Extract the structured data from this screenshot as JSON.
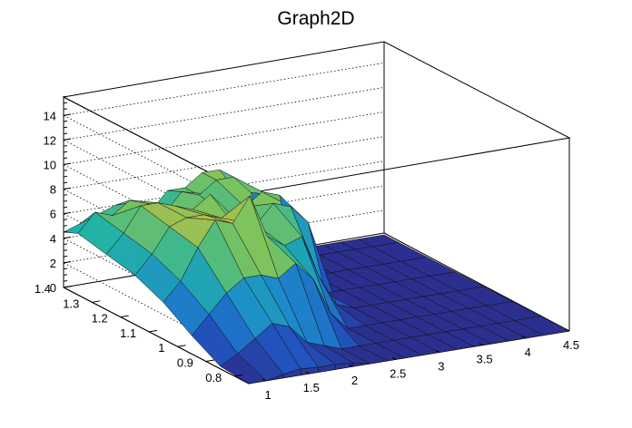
{
  "chart_data": {
    "type": "surface",
    "title": "Graph2D",
    "xlabel": "",
    "ylabel": "",
    "zlabel": "",
    "xlim": [
      0.8,
      4.5
    ],
    "ylim": [
      0.75,
      1.4
    ],
    "zlim": [
      0,
      15.5
    ],
    "x_ticks": [
      "1",
      "1.5",
      "2",
      "2.5",
      "3",
      "3.5",
      "4",
      "4.5"
    ],
    "x_tick_values": [
      1,
      1.5,
      2,
      2.5,
      3,
      3.5,
      4,
      4.5
    ],
    "y_ticks": [
      "0.8",
      "0.9",
      "1",
      "1.1",
      "1.2",
      "1.3",
      "1.4"
    ],
    "y_tick_values": [
      0.8,
      0.9,
      1.0,
      1.1,
      1.2,
      1.3,
      1.4
    ],
    "z_ticks": [
      "0",
      "2",
      "4",
      "6",
      "8",
      "10",
      "12",
      "14"
    ],
    "z_tick_values": [
      0,
      2,
      4,
      6,
      8,
      10,
      12,
      14
    ],
    "grid": true,
    "palette": [
      "#2b2f8f",
      "#1f5bc6",
      "#1d8fc9",
      "#22b3a4",
      "#7cc35d",
      "#e1b53c",
      "#f6e11f"
    ],
    "surface_x": [
      0.8,
      1.0,
      1.2,
      1.4,
      1.6,
      1.8,
      2.0,
      2.2,
      2.4,
      2.6,
      2.8,
      3.0,
      3.2,
      3.4,
      3.6,
      3.8,
      4.0,
      4.2,
      4.5
    ],
    "surface_y": [
      0.75,
      0.85,
      0.95,
      1.05,
      1.15,
      1.25,
      1.35,
      1.4
    ],
    "surface_z": [
      [
        0.0,
        0.0,
        0.3,
        0.5,
        0.4,
        0.4,
        0.3,
        0.0,
        0.0,
        0.0,
        0.0,
        0.0,
        0.0,
        0.0,
        0.0,
        0.0,
        0.0,
        0.0,
        0.0
      ],
      [
        0.2,
        1.0,
        2.0,
        3.0,
        2.5,
        1.0,
        0.5,
        0.0,
        0.0,
        0.0,
        0.0,
        0.0,
        0.0,
        0.0,
        0.0,
        0.0,
        0.0,
        0.0,
        0.0
      ],
      [
        1.5,
        3.0,
        4.5,
        5.5,
        5.5,
        5.0,
        6.0,
        4.5,
        1.5,
        0.0,
        0.0,
        0.0,
        0.0,
        0.0,
        0.0,
        0.0,
        0.0,
        0.0,
        0.0
      ],
      [
        3.0,
        4.5,
        7.0,
        9.0,
        8.5,
        10.5,
        7.0,
        6.0,
        6.5,
        3.0,
        0.5,
        0.0,
        0.0,
        0.0,
        0.0,
        0.0,
        0.0,
        0.0,
        0.0
      ],
      [
        4.0,
        5.5,
        7.5,
        8.0,
        8.0,
        7.5,
        7.0,
        6.5,
        8.0,
        7.5,
        6.0,
        0.0,
        0.0,
        0.0,
        0.0,
        0.0,
        0.0,
        0.0,
        0.0
      ],
      [
        4.5,
        6.0,
        8.0,
        8.0,
        7.5,
        7.0,
        8.0,
        6.0,
        6.5,
        7.5,
        7.0,
        0.0,
        0.0,
        0.0,
        0.0,
        0.0,
        0.0,
        0.0,
        0.0
      ],
      [
        5.0,
        6.5,
        6.0,
        7.0,
        6.5,
        5.5,
        7.0,
        6.5,
        7.5,
        7.5,
        6.0,
        0.0,
        0.0,
        0.0,
        0.0,
        0.0,
        0.0,
        0.0,
        0.0
      ],
      [
        4.5,
        5.0,
        5.5,
        6.0,
        6.0,
        5.0,
        6.5,
        6.5,
        7.5,
        7.5,
        5.5,
        0.0,
        0.0,
        0.0,
        0.0,
        0.0,
        0.0,
        0.0,
        0.0
      ]
    ]
  }
}
